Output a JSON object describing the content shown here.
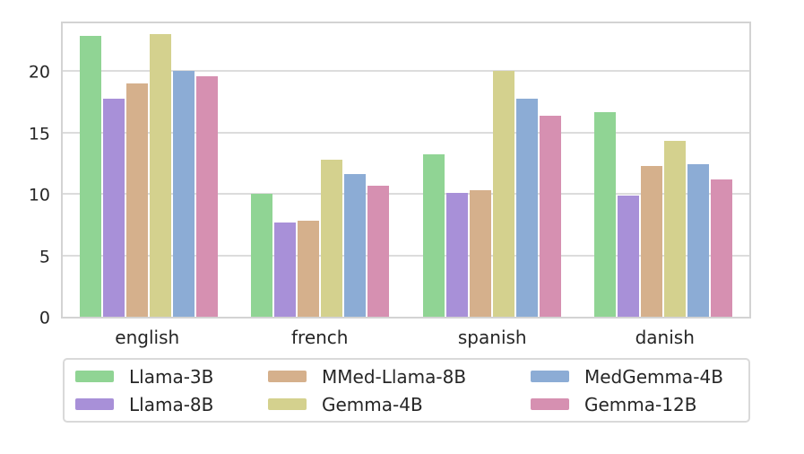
{
  "chart_data": {
    "type": "bar",
    "title": "",
    "xlabel": "",
    "ylabel": "",
    "categories": [
      "english",
      "french",
      "spanish",
      "danish"
    ],
    "series": [
      {
        "name": "Llama-3B",
        "color": "#90d494",
        "values": [
          22.9,
          10.0,
          13.2,
          16.7
        ]
      },
      {
        "name": "Llama-8B",
        "color": "#a890d8",
        "values": [
          17.8,
          7.7,
          10.1,
          9.9
        ]
      },
      {
        "name": "MMed-Llama-8B",
        "color": "#d5b08c",
        "values": [
          19.0,
          7.8,
          10.3,
          12.3
        ]
      },
      {
        "name": "Gemma-4B",
        "color": "#d4d18e",
        "values": [
          23.0,
          12.8,
          20.0,
          14.3
        ]
      },
      {
        "name": "MedGemma-4B",
        "color": "#8cacd5",
        "values": [
          20.0,
          11.6,
          17.8,
          12.4
        ]
      },
      {
        "name": "Gemma-12B",
        "color": "#d690b1",
        "values": [
          19.6,
          10.7,
          16.4,
          11.2
        ]
      }
    ],
    "yticks": [
      0,
      5,
      10,
      15,
      20
    ],
    "ylim": [
      0,
      24.2
    ],
    "grid": true,
    "grid_color": "#dcdcdc",
    "spine_color": "#d3d3d3",
    "text_color": "#262626",
    "legend_position": "below",
    "legend_columns": 3,
    "legend_column_order": [
      [
        0,
        1
      ],
      [
        2,
        3
      ],
      [
        4,
        5
      ]
    ]
  }
}
